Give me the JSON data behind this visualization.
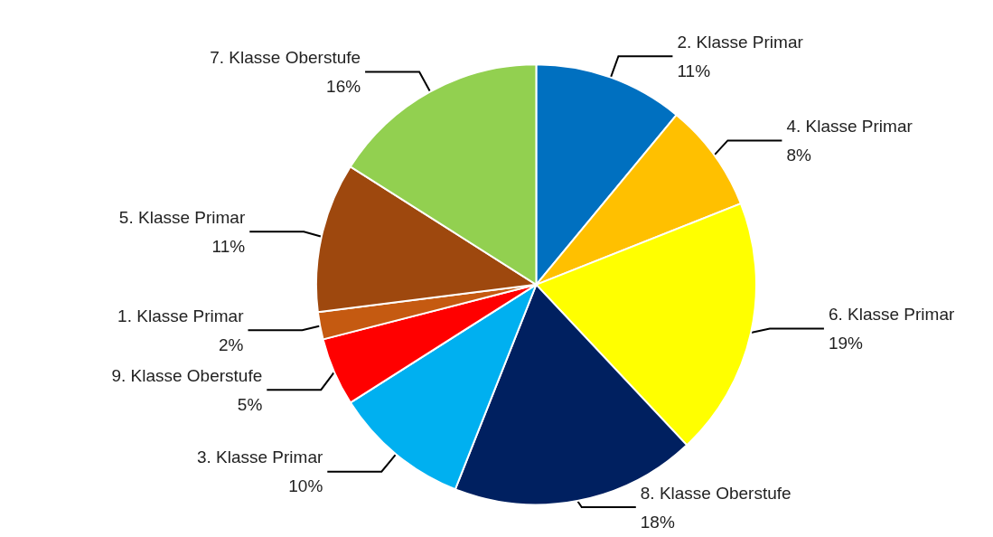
{
  "chart_data": {
    "type": "pie",
    "categories": [
      "2. Klasse Primar",
      "4. Klasse Primar",
      "6. Klasse Primar",
      "8. Klasse Oberstufe",
      "3. Klasse Primar",
      "9. Klasse Oberstufe",
      "1. Klasse Primar",
      "5. Klasse Primar",
      "7. Klasse Oberstufe"
    ],
    "values": [
      11,
      8,
      19,
      18,
      10,
      5,
      2,
      11,
      16
    ],
    "value_labels": [
      "11%",
      "8%",
      "19%",
      "18%",
      "10%",
      "5%",
      "2%",
      "11%",
      "16%"
    ],
    "colors": [
      "#0070c0",
      "#ffc000",
      "#ffff00",
      "#002060",
      "#00b0f0",
      "#ff0000",
      "#c55a11",
      "#9e480e",
      "#92d050"
    ],
    "legend": false
  }
}
